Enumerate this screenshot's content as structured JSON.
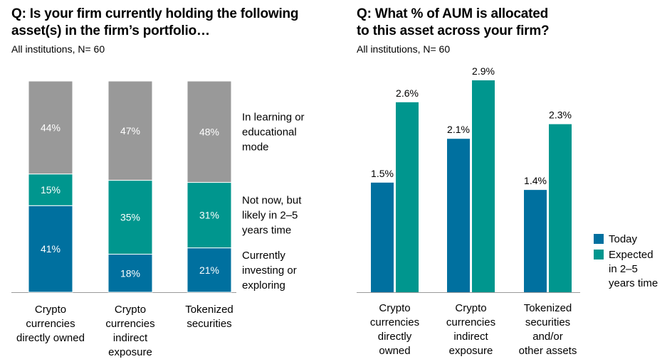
{
  "colors": {
    "today": "#00709f",
    "expected": "#00968e",
    "learning": "#999999",
    "axis": "#999999"
  },
  "left": {
    "title_lines": [
      "Q: Is your firm currently holding the following",
      "asset(s) in the firm’s portfolio…"
    ],
    "subtitle": "All institutions, N= 60"
  },
  "right": {
    "title_lines": [
      "Q: What % of AUM is allocated",
      "to this asset across your firm?"
    ],
    "subtitle": "All institutions, N= 60"
  },
  "chart_data": [
    {
      "type": "bar",
      "stacked": true,
      "percent_stacked": true,
      "categories": [
        [
          "Crypto",
          "currencies",
          "directly owned"
        ],
        [
          "Crypto",
          "currencies",
          "indirect",
          "exposure"
        ],
        [
          "Tokenized",
          "securities"
        ]
      ],
      "series": [
        {
          "name": [
            "Currently",
            "investing or",
            "exploring"
          ],
          "values": [
            41,
            18,
            21
          ],
          "labels": [
            "41%",
            "18%",
            "21%"
          ],
          "color_key": "today"
        },
        {
          "name": [
            "Not now, but",
            "likely in 2–5",
            "years time"
          ],
          "values": [
            15,
            35,
            31
          ],
          "labels": [
            "15%",
            "35%",
            "31%"
          ],
          "color_key": "expected"
        },
        {
          "name": [
            "In learning or",
            "educational",
            "mode"
          ],
          "values": [
            44,
            47,
            48
          ],
          "labels": [
            "44%",
            "47%",
            "48%"
          ],
          "color_key": "learning"
        }
      ],
      "legend": "right",
      "grid": false
    },
    {
      "type": "bar",
      "categories": [
        [
          "Crypto",
          "currencies",
          "directly",
          "owned"
        ],
        [
          "Crypto",
          "currencies",
          "indirect",
          "exposure"
        ],
        [
          "Tokenized",
          "securities",
          "and/or",
          "other assets"
        ]
      ],
      "series": [
        {
          "name": [
            "Today"
          ],
          "values": [
            1.5,
            2.1,
            1.4
          ],
          "labels": [
            "1.5%",
            "2.1%",
            "1.4%"
          ],
          "color_key": "today"
        },
        {
          "name": [
            "Expected",
            "in 2–5",
            "years time"
          ],
          "values": [
            2.6,
            2.9,
            2.3
          ],
          "labels": [
            "2.6%",
            "2.9%",
            "2.3%"
          ],
          "color_key": "expected"
        }
      ],
      "ylim": [
        0,
        2.9
      ],
      "legend": "bottom-right",
      "grid": false
    }
  ]
}
